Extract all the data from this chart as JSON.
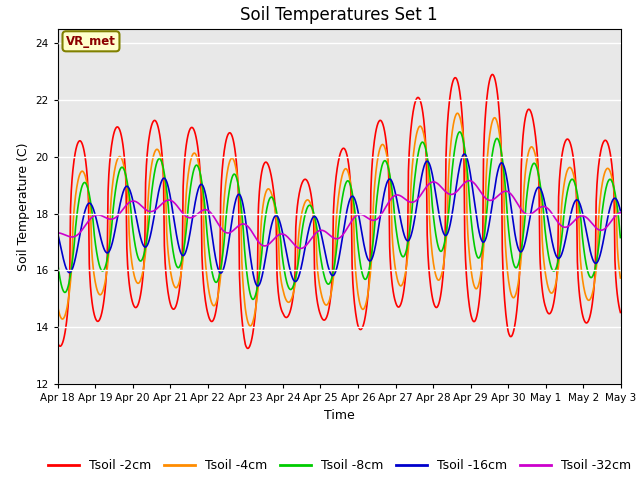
{
  "title": "Soil Temperatures Set 1",
  "xlabel": "Time",
  "ylabel": "Soil Temperature (C)",
  "ylim": [
    12,
    24.5
  ],
  "xlim_days": 15,
  "yticks": [
    12,
    14,
    16,
    18,
    20,
    22,
    24
  ],
  "xtick_labels": [
    "Apr 18",
    "Apr 19",
    "Apr 20",
    "Apr 21",
    "Apr 22",
    "Apr 23",
    "Apr 24",
    "Apr 25",
    "Apr 26",
    "Apr 27",
    "Apr 28",
    "Apr 29",
    "Apr 30",
    "May 1",
    "May 2",
    "May 3"
  ],
  "annotation": "VR_met",
  "background_color": "#e8e8e8",
  "series_colors": {
    "Tsoil -2cm": "#ff0000",
    "Tsoil -4cm": "#ff8c00",
    "Tsoil -8cm": "#00cc00",
    "Tsoil -16cm": "#0000cc",
    "Tsoil -32cm": "#cc00cc"
  },
  "line_width": 1.2,
  "title_fontsize": 12,
  "axis_label_fontsize": 9,
  "tick_fontsize": 7.5,
  "grid_color": "#ffffff",
  "fig_bg": "#ffffff",
  "legend_fontsize": 9
}
